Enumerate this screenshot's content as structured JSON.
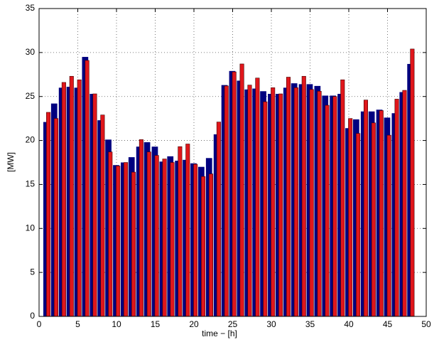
{
  "chart_data": {
    "type": "bar",
    "xlabel": "time − [h]",
    "ylabel": "[MW]",
    "x": [
      1,
      2,
      3,
      4,
      5,
      6,
      7,
      8,
      9,
      10,
      11,
      12,
      13,
      14,
      15,
      16,
      17,
      18,
      19,
      20,
      21,
      22,
      23,
      24,
      25,
      26,
      27,
      28,
      29,
      30,
      31,
      32,
      33,
      34,
      35,
      36,
      37,
      38,
      39,
      40,
      41,
      42,
      43,
      44,
      45,
      46,
      47,
      48
    ],
    "series": [
      {
        "color": "#00007f",
        "values": [
          22.1,
          24.2,
          26.0,
          26.1,
          26.0,
          29.5,
          25.3,
          22.3,
          20.1,
          17.2,
          17.5,
          18.1,
          19.3,
          19.8,
          19.3,
          17.6,
          18.2,
          17.7,
          17.8,
          17.4,
          17.0,
          18.0,
          20.7,
          26.3,
          27.9,
          26.8,
          25.8,
          25.9,
          25.6,
          25.3,
          25.3,
          26.0,
          26.5,
          26.4,
          26.4,
          26.2,
          25.1,
          25.1,
          25.3,
          21.4,
          22.4,
          23.3,
          23.3,
          23.5,
          22.6,
          23.1,
          25.5,
          28.7
        ]
      },
      {
        "color": "#e0161b",
        "values": [
          23.2,
          22.5,
          26.6,
          27.3,
          26.9,
          29.1,
          25.3,
          22.9,
          18.7,
          17.1,
          17.5,
          16.4,
          20.1,
          18.7,
          18.3,
          17.9,
          17.5,
          19.3,
          19.6,
          17.3,
          15.9,
          16.2,
          22.1,
          26.2,
          27.8,
          28.7,
          26.3,
          27.1,
          24.4,
          26.0,
          25.3,
          27.2,
          26.0,
          27.3,
          25.8,
          25.6,
          24.0,
          25.0,
          26.9,
          22.5,
          20.8,
          24.6,
          22.0,
          23.4,
          20.6,
          24.7,
          25.7,
          30.4
        ]
      }
    ],
    "xlim": [
      0,
      50
    ],
    "xticks": [
      0,
      5,
      10,
      15,
      20,
      25,
      30,
      35,
      40,
      45,
      50
    ],
    "ylim": [
      0,
      35
    ],
    "yticks": [
      0,
      5,
      10,
      15,
      20,
      25,
      30,
      35
    ],
    "grid": true
  }
}
